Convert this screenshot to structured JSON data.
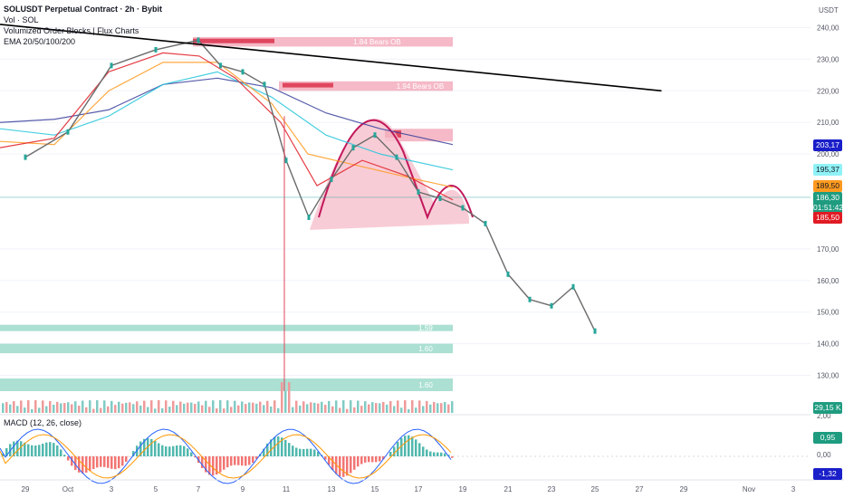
{
  "legend": {
    "title": "SOLUSDT Perpetual Contract · 2h · Bybit",
    "vol": "Vol · SOL",
    "indicator1": "Volumized Order Blocks | Flux Charts",
    "indicator2": "EMA 20/50/100/200"
  },
  "price_axis": {
    "unit": "USDT",
    "ticks": [
      "240,00",
      "230,00",
      "220,00",
      "210,00",
      "200,00",
      "170,00",
      "160,00",
      "150,00",
      "140,00",
      "130,00"
    ]
  },
  "macd": {
    "label": "MACD (12, 26, close)",
    "ticks": [
      "2,00",
      "0,00"
    ]
  },
  "badges": [
    {
      "text": "203,17",
      "bg": "#1a1fc9",
      "fg": "#ffffff"
    },
    {
      "text": "195,37",
      "bg": "#8ff2f6",
      "fg": "#131722"
    },
    {
      "text": "189,50",
      "bg": "#ff9a1f",
      "fg": "#131722"
    },
    {
      "text": "186,30",
      "bg": "#1f9c80",
      "fg": "#ffffff"
    },
    {
      "text": "01:51:42",
      "bg": "#1f9c80",
      "fg": "#ffffff"
    },
    {
      "text": "185,50",
      "bg": "#e01b24",
      "fg": "#ffffff"
    },
    {
      "text": "29,15 K",
      "bg": "#1f9c80",
      "fg": "#ffffff"
    },
    {
      "text": "0,95",
      "bg": "#1f9c80",
      "fg": "#ffffff"
    },
    {
      "text": "-1,32",
      "bg": "#1a1fc9",
      "fg": "#ffffff"
    }
  ],
  "chart_data": {
    "type": "line",
    "symbol": "SOLUSDT Perpetual Contract",
    "timeframe": "2h",
    "exchange": "Bybit",
    "x_ticks": [
      "29",
      "Oct",
      "3",
      "5",
      "7",
      "9",
      "11",
      "13",
      "15",
      "17",
      "19",
      "21",
      "23",
      "25",
      "27",
      "29",
      "Nov",
      "3"
    ],
    "ylim": [
      125,
      243
    ],
    "series": [
      {
        "name": "SOLUSDT",
        "color": "#555555",
        "points": [
          [
            "29",
            199
          ],
          [
            "Oct",
            207
          ],
          [
            "3",
            228
          ],
          [
            "5",
            233
          ],
          [
            "7",
            236
          ],
          [
            "8",
            228
          ],
          [
            "9",
            226
          ],
          [
            "10",
            222
          ],
          [
            "11",
            198
          ],
          [
            "12",
            180
          ],
          [
            "13",
            192
          ],
          [
            "14",
            202
          ],
          [
            "15",
            206
          ],
          [
            "16",
            199
          ],
          [
            "17",
            188
          ],
          [
            "18",
            186
          ],
          [
            "19",
            183
          ],
          [
            "20",
            178
          ],
          [
            "21",
            162
          ],
          [
            "22",
            154
          ],
          [
            "23",
            152
          ],
          [
            "24",
            158
          ],
          [
            "25",
            144
          ]
        ]
      }
    ],
    "order_blocks": [
      {
        "label": "1.84 Bears OB",
        "price_top": 237,
        "price_bottom": 234,
        "color": "#f2a2b4"
      },
      {
        "label": "1.94 Bears OB",
        "price_top": 223,
        "price_bottom": 220,
        "color": "#f2a2b4"
      },
      {
        "label": "",
        "price_top": 208,
        "price_bottom": 204,
        "color": "#f2a2b4"
      },
      {
        "label": "1.59",
        "price_top": 146,
        "price_bottom": 144,
        "color": "#8fd6c3"
      },
      {
        "label": "1.60",
        "price_top": 140,
        "price_bottom": 137,
        "color": "#8fd6c3"
      },
      {
        "label": "1.60",
        "price_top": 129,
        "price_bottom": 125,
        "color": "#8fd6c3"
      }
    ],
    "trendline": {
      "from": [
        "29",
        241
      ],
      "to": [
        "28",
        220
      ],
      "color": "#000000"
    },
    "current_price": 186.3
  }
}
